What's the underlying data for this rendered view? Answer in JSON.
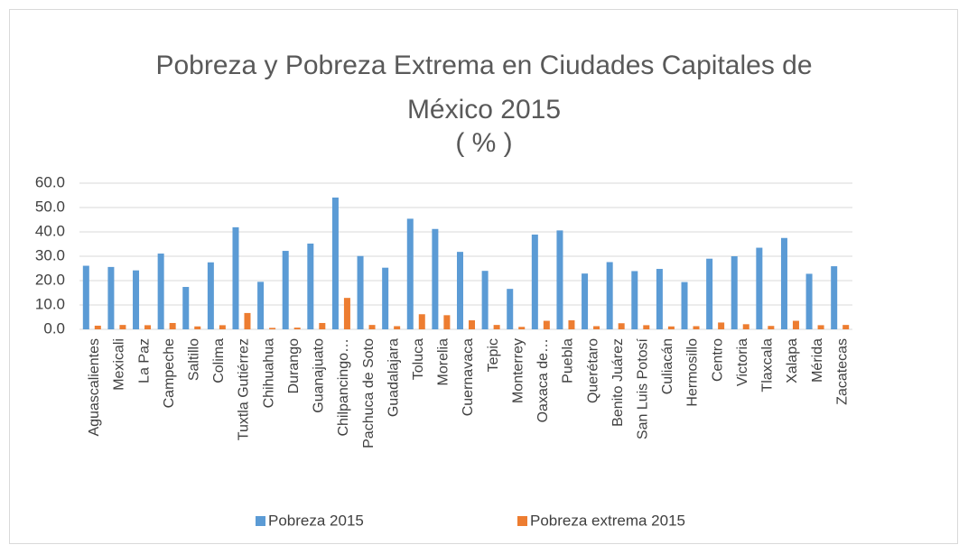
{
  "chart_data": {
    "type": "bar",
    "title": [
      "Pobreza y Pobreza Extrema en Ciudades Capitales de",
      "México 2015",
      "( % )"
    ],
    "categories": [
      "Aguascalientes",
      "Mexicali",
      "La Paz",
      "Campeche",
      "Saltillo",
      "Colima",
      "Tuxtla Gutiérrez",
      "Chihuahua",
      "Durango",
      "Guanajuato",
      "Chilpancingo…",
      "Pachuca de Soto",
      "Guadalajara",
      "Toluca",
      "Morelia",
      "Cuernavaca",
      "Tepic",
      "Monterrey",
      "Oaxaca de…",
      "Puebla",
      "Querétaro",
      "Benito Juárez",
      "San Luis Potosí",
      "Culiacán",
      "Hermosillo",
      "Centro",
      "Victoria",
      "Tlaxcala",
      "Xalapa",
      "Mérida",
      "Zacatecas"
    ],
    "series": [
      {
        "name": "Pobreza 2015",
        "color": "#5b9bd5",
        "values": [
          26.1,
          25.6,
          24.2,
          31.1,
          17.4,
          27.5,
          41.9,
          19.5,
          32.2,
          35.2,
          54.1,
          30.1,
          25.3,
          45.4,
          41.2,
          31.8,
          24.0,
          16.6,
          38.9,
          40.6,
          22.9,
          27.6,
          23.9,
          24.8,
          19.4,
          29.0,
          30.0,
          33.5,
          37.5,
          22.8,
          25.9
        ]
      },
      {
        "name": "Pobreza extrema 2015",
        "color": "#ed7d31",
        "values": [
          1.5,
          1.8,
          1.7,
          2.6,
          1.2,
          1.7,
          6.7,
          0.6,
          0.7,
          2.6,
          12.9,
          1.8,
          1.3,
          6.2,
          5.8,
          3.7,
          1.8,
          1.0,
          3.5,
          3.7,
          1.3,
          2.5,
          1.7,
          1.2,
          1.3,
          2.8,
          2.1,
          1.4,
          3.5,
          1.7,
          1.8
        ]
      }
    ],
    "ylim": [
      0,
      60
    ],
    "yticks": [
      {
        "value": 0,
        "label": "0.0"
      },
      {
        "value": 10,
        "label": "10.0"
      },
      {
        "value": 20,
        "label": "20.0"
      },
      {
        "value": 30,
        "label": "30.0"
      },
      {
        "value": 40,
        "label": "40.0"
      },
      {
        "value": 50,
        "label": "50.0"
      },
      {
        "value": 60,
        "label": "60.0"
      }
    ],
    "grid": true,
    "legend": "bottom"
  }
}
